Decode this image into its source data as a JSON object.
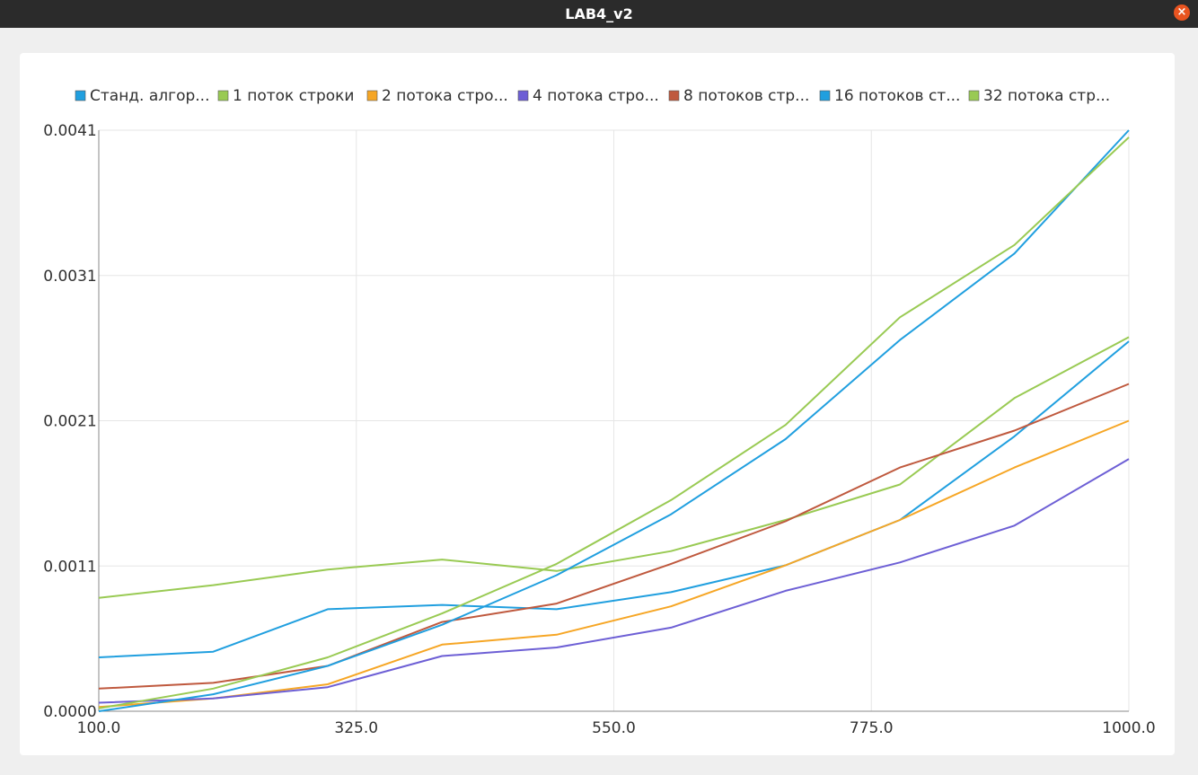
{
  "window": {
    "title": "LAB4_v2",
    "close_icon": "×"
  },
  "colors": {
    "grid": "#e6e6e6",
    "axis": "#8a8a8a"
  },
  "chart_data": {
    "type": "line",
    "title": "",
    "xlabel": "",
    "ylabel": "",
    "xlim": [
      100,
      1000
    ],
    "ylim": [
      0,
      0.0041
    ],
    "grid": true,
    "legend_position": "top",
    "x_ticks": [
      "100.0",
      "325.0",
      "550.0",
      "775.0",
      "1000.0"
    ],
    "y_ticks": [
      "0.0000",
      "0.0011",
      "0.0021",
      "0.0031",
      "0.0041"
    ],
    "x": [
      100,
      200,
      300,
      400,
      500,
      600,
      700,
      800,
      900,
      1000
    ],
    "series": [
      {
        "name": "Станд. алгор...",
        "color": "#209fdf",
        "values": [
          0.00038,
          0.00042,
          0.00072,
          0.00075,
          0.00072,
          0.00084,
          0.00103,
          0.00135,
          0.00194,
          0.00261
        ]
      },
      {
        "name": "1 поток строки",
        "color": "#99ca53",
        "values": [
          0.0008,
          0.00089,
          0.001,
          0.00107,
          0.00099,
          0.00113,
          0.00135,
          0.0016,
          0.00221,
          0.00264
        ]
      },
      {
        "name": "2 потока стро...",
        "color": "#f6a625",
        "values": [
          3e-05,
          9e-05,
          0.00019,
          0.00047,
          0.00054,
          0.00074,
          0.00103,
          0.00135,
          0.00172,
          0.00205
        ]
      },
      {
        "name": "4 потока стро...",
        "color": "#6d5fd5",
        "values": [
          6e-05,
          9e-05,
          0.00017,
          0.00039,
          0.00045,
          0.00059,
          0.00085,
          0.00105,
          0.00131,
          0.00178
        ]
      },
      {
        "name": "8 потоков стр...",
        "color": "#bf593e",
        "values": [
          0.00016,
          0.0002,
          0.00032,
          0.00063,
          0.00076,
          0.00104,
          0.00134,
          0.00172,
          0.00198,
          0.00231
        ]
      },
      {
        "name": "16 потоков ст...",
        "color": "#209fdf",
        "values": [
          0.0,
          0.00012,
          0.00032,
          0.00061,
          0.00096,
          0.00139,
          0.00192,
          0.00262,
          0.00323,
          0.0041
        ]
      },
      {
        "name": "32 потока стр...",
        "color": "#99ca53",
        "values": [
          2e-05,
          0.00016,
          0.00038,
          0.00069,
          0.00104,
          0.00149,
          0.00202,
          0.00278,
          0.00329,
          0.00405
        ]
      }
    ]
  }
}
